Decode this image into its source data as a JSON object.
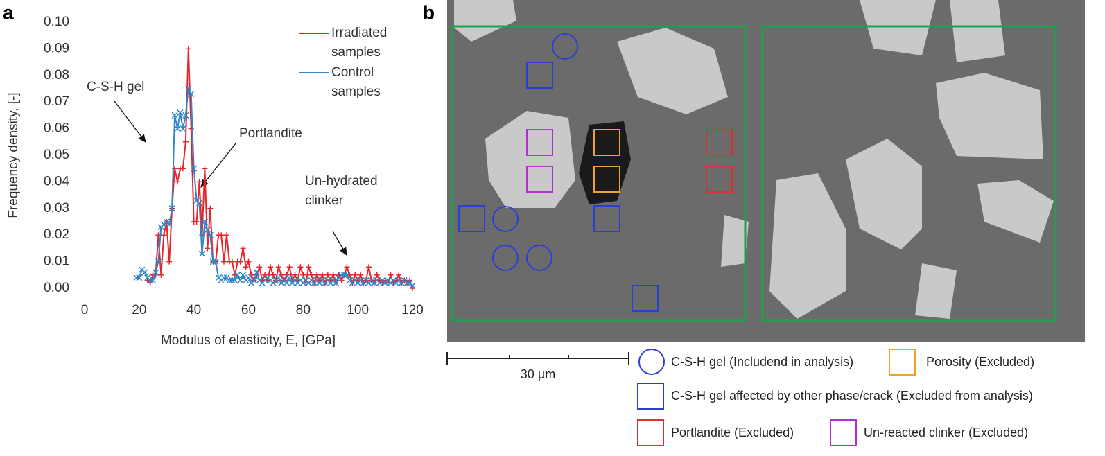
{
  "panel_labels": [
    "a",
    "b"
  ],
  "chart_data": {
    "type": "line",
    "x_axis_label": "Modulus of elasticity, E, [GPa]",
    "y_axis_label": "Frequency density, [-]",
    "annotations": [
      "C-S-H gel",
      "Portlandite",
      "Un-hydrated clinker"
    ],
    "x": [
      19,
      20,
      21,
      22,
      23,
      24,
      25,
      26,
      27,
      28,
      29,
      30,
      31,
      32,
      33,
      34,
      35,
      36,
      37,
      38,
      39,
      40,
      41,
      42,
      43,
      44,
      45,
      46,
      47,
      48,
      49,
      50,
      51,
      52,
      53,
      54,
      55,
      56,
      57,
      58,
      59,
      60,
      61,
      62,
      63,
      64,
      65,
      66,
      67,
      68,
      69,
      70,
      71,
      72,
      73,
      74,
      75,
      76,
      77,
      78,
      79,
      80,
      81,
      82,
      83,
      84,
      85,
      86,
      87,
      88,
      89,
      90,
      91,
      92,
      93,
      94,
      95,
      96,
      97,
      98,
      99,
      100,
      101,
      102,
      103,
      104,
      105,
      106,
      107,
      108,
      109,
      110,
      111,
      112,
      113,
      114,
      115,
      116,
      117,
      118,
      119,
      120
    ],
    "series": [
      {
        "name": "Irradiated samples",
        "color": "#e8242a",
        "marker": "+",
        "values": [
          null,
          null,
          null,
          null,
          0.003,
          0.002,
          0.005,
          0.005,
          0.02,
          0.005,
          0.02,
          0.025,
          0.01,
          0.03,
          0.045,
          0.04,
          0.045,
          0.045,
          0.055,
          0.09,
          0.06,
          0.025,
          0.025,
          0.04,
          0.02,
          0.045,
          0.015,
          0.03,
          0.01,
          0.01,
          0.02,
          0.02,
          0.01,
          0.02,
          0.01,
          0.01,
          0.005,
          0.01,
          0.01,
          0.015,
          0.008,
          0.01,
          0.005,
          0.003,
          0.005,
          0.008,
          0.003,
          0.005,
          0.003,
          0.008,
          0.005,
          0.003,
          0.008,
          0.005,
          0.003,
          0.005,
          0.008,
          0.003,
          0.005,
          0.003,
          0.008,
          0.005,
          0.002,
          0.008,
          0.005,
          0.002,
          0.005,
          0.003,
          0.005,
          0.002,
          0.005,
          0.003,
          0.005,
          0.002,
          0.005,
          0.003,
          0.005,
          0.008,
          0.005,
          0.002,
          0.005,
          0.003,
          0.005,
          0.002,
          0.003,
          0.008,
          0.003,
          0.002,
          0.005,
          0.003,
          0.002,
          0.003,
          0.002,
          0.005,
          0.002,
          0.003,
          0.005,
          0.002,
          0.003,
          0.002,
          0.003,
          0.0
        ]
      },
      {
        "name": "Control samples",
        "color": "#2f86c9",
        "marker": "x",
        "values": [
          0.004,
          0.004,
          0.007,
          0.006,
          0.004,
          0.003,
          0.003,
          0.006,
          0.01,
          0.023,
          0.024,
          0.025,
          0.024,
          0.03,
          0.065,
          0.06,
          0.066,
          0.06,
          0.065,
          0.075,
          0.073,
          0.045,
          0.033,
          0.032,
          0.013,
          0.025,
          0.022,
          0.02,
          0.01,
          0.01,
          0.004,
          0.003,
          0.004,
          0.004,
          0.003,
          0.003,
          0.003,
          0.005,
          0.003,
          0.005,
          0.003,
          0.004,
          0.002,
          0.003,
          0.006,
          0.003,
          0.002,
          0.003,
          0.004,
          0.003,
          0.002,
          0.003,
          0.004,
          0.002,
          0.003,
          0.002,
          0.004,
          0.002,
          0.003,
          0.002,
          0.003,
          0.002,
          0.003,
          0.002,
          0.003,
          0.002,
          0.003,
          0.002,
          0.003,
          0.002,
          0.003,
          0.002,
          0.003,
          0.002,
          0.004,
          0.005,
          0.005,
          0.005,
          0.003,
          0.002,
          0.003,
          0.002,
          0.003,
          0.002,
          0.003,
          0.002,
          0.003,
          0.002,
          0.003,
          0.002,
          0.003,
          0.002,
          0.003,
          0.002,
          0.003,
          0.002,
          0.003,
          0.002,
          0.003,
          0.002,
          0.002,
          0.001
        ]
      }
    ],
    "xlim": [
      0,
      120
    ],
    "xticks": [
      0,
      20,
      40,
      60,
      80,
      100,
      120
    ],
    "ylim": [
      0,
      0.1
    ],
    "yticks": [
      {
        "value": 0,
        "label": "0.00"
      },
      {
        "value": 0.01,
        "label": "0.01"
      },
      {
        "value": 0.02,
        "label": "0.02"
      },
      {
        "value": 0.03,
        "label": "0.03"
      },
      {
        "value": 0.04,
        "label": "0.04"
      },
      {
        "value": 0.05,
        "label": "0.05"
      },
      {
        "value": 0.06,
        "label": "0.06"
      },
      {
        "value": 0.07,
        "label": "0.07"
      },
      {
        "value": 0.08,
        "label": "0.08"
      },
      {
        "value": 0.09,
        "label": "0.09"
      },
      {
        "value": 0.1,
        "label": "0.10"
      }
    ],
    "grid": false,
    "legend": "upper right"
  },
  "micrograph": {
    "scale_bar": "30 µm",
    "legend": [
      "C-S-H gel (Includend in analysis)",
      "Porosity (Excluded)",
      "C-S-H gel affected by other phase/crack (Excluded from analysis)",
      "Portlandite (Excluded)",
      "Un-reacted clinker (Excluded)"
    ]
  }
}
